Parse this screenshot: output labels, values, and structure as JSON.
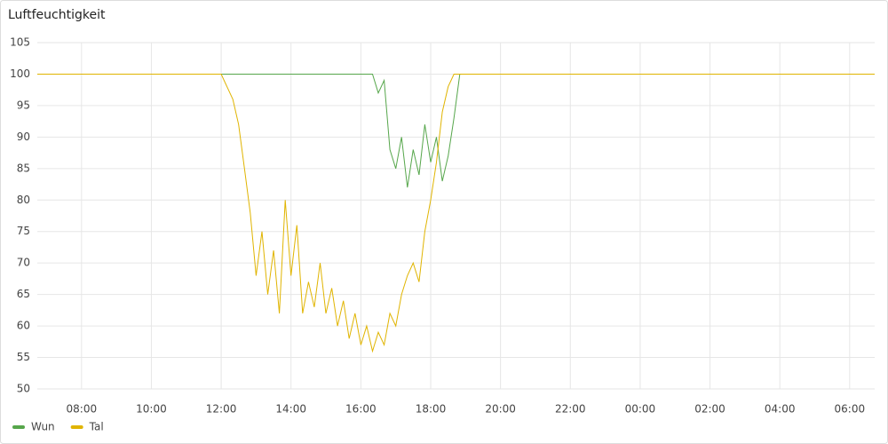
{
  "chart_data": {
    "type": "line",
    "title": "Luftfeuchtigkeit",
    "x": [
      "06:44",
      "12:00",
      "12:10",
      "12:20",
      "12:30",
      "12:40",
      "12:50",
      "13:00",
      "13:10",
      "13:20",
      "13:30",
      "13:40",
      "13:50",
      "14:00",
      "14:10",
      "14:20",
      "14:30",
      "14:40",
      "14:50",
      "15:00",
      "15:10",
      "15:20",
      "15:30",
      "15:40",
      "15:50",
      "16:00",
      "16:10",
      "16:20",
      "16:30",
      "16:40",
      "16:50",
      "17:00",
      "17:10",
      "17:20",
      "17:30",
      "17:40",
      "17:50",
      "18:00",
      "18:10",
      "18:20",
      "18:30",
      "18:40",
      "18:50",
      "19:00",
      "06:43"
    ],
    "series": [
      {
        "name": "Wun",
        "color": "#56a64b",
        "values": [
          100,
          100,
          100,
          100,
          100,
          100,
          100,
          100,
          100,
          100,
          100,
          100,
          100,
          100,
          100,
          100,
          100,
          100,
          100,
          100,
          100,
          100,
          100,
          100,
          100,
          100,
          100,
          100,
          97,
          99,
          88,
          85,
          90,
          82,
          88,
          84,
          92,
          86,
          90,
          83,
          87,
          93,
          100,
          100,
          100
        ]
      },
      {
        "name": "Tal",
        "color": "#e0b400",
        "values": [
          100,
          100,
          98,
          96,
          92,
          85,
          78,
          68,
          75,
          65,
          72,
          62,
          80,
          68,
          76,
          62,
          67,
          63,
          70,
          62,
          66,
          60,
          64,
          58,
          62,
          57,
          60,
          56,
          59,
          57,
          62,
          60,
          65,
          68,
          70,
          67,
          75,
          80,
          86,
          94,
          98,
          100,
          100,
          100,
          100
        ]
      }
    ],
    "xlim": [
      "06:44",
      "06:43"
    ],
    "xticks": [
      "08:00",
      "10:00",
      "12:00",
      "14:00",
      "16:00",
      "18:00",
      "20:00",
      "22:00",
      "00:00",
      "02:00",
      "04:00",
      "06:00"
    ],
    "ylim": [
      50,
      105
    ],
    "yticks": [
      50,
      55,
      60,
      65,
      70,
      75,
      80,
      85,
      90,
      95,
      100,
      105
    ],
    "grid": true,
    "legend": "bottom-left"
  }
}
